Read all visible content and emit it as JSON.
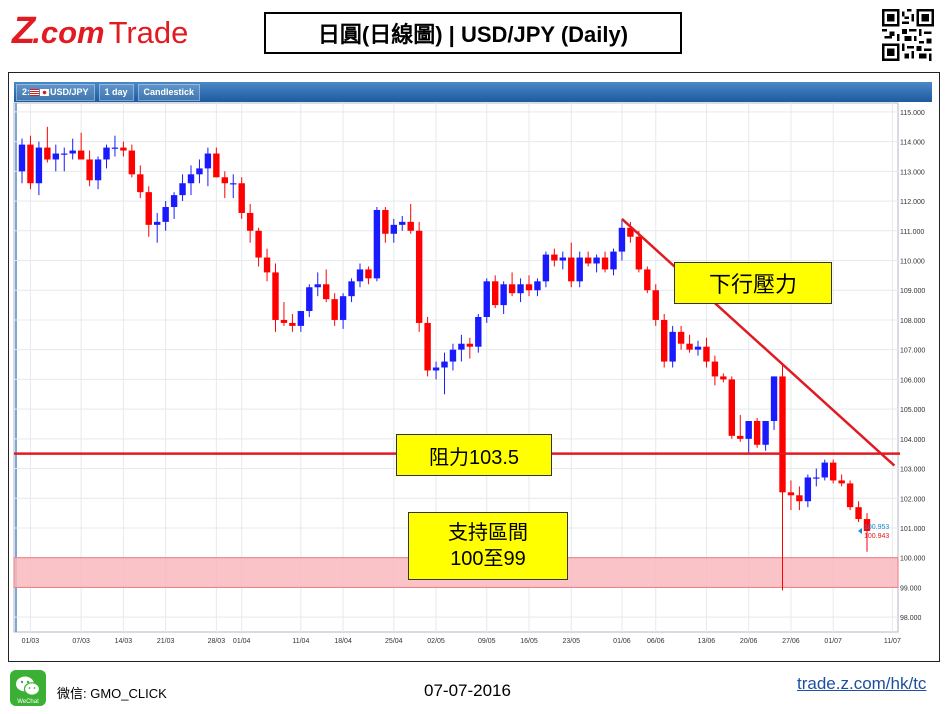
{
  "header": {
    "logo_z": "Z",
    "logo_com": ".com",
    "logo_trade": "Trade",
    "title": "日圓(日線圖) | USD/JPY  (Daily)"
  },
  "toolbar": {
    "index": "2:",
    "symbol": "USD/JPY",
    "period": "1 day",
    "chart_type": "Candlestick"
  },
  "annotations": {
    "downtrend_label": "下行壓力",
    "resistance_label": "阻力103.5",
    "support_line1": "支持區間",
    "support_line2": "100至99"
  },
  "price_tags": {
    "ask": "100.953",
    "bid": "100.943"
  },
  "colors": {
    "up": "#1a1aff",
    "down": "#ff0000",
    "trendline": "#e21a22",
    "support_zone": "#f9b9bd",
    "label_bg": "#ffff00",
    "accent": "#e21a22"
  },
  "footer": {
    "wechat_icon_text": "WeChat",
    "wechat_label": "微信: GMO_CLICK",
    "date": "07-07-2016",
    "url": "trade.z.com/hk/tc"
  },
  "chart_data": {
    "type": "candlestick",
    "title": "",
    "ylim": [
      97.5,
      115.3
    ],
    "yticks": [
      "115.000",
      "114.000",
      "113.000",
      "112.000",
      "111.000",
      "110.000",
      "109.000",
      "108.000",
      "107.000",
      "106.000",
      "105.000",
      "104.000",
      "103.000",
      "102.000",
      "101.000",
      "100.000",
      "99.000",
      "98.000"
    ],
    "xticks": [
      "01/03",
      "07/03",
      "14/03",
      "21/03",
      "28/03",
      "01/04",
      "11/04",
      "18/04",
      "25/04",
      "02/05",
      "09/05",
      "16/05",
      "23/05",
      "01/06",
      "06/06",
      "13/06",
      "20/06",
      "27/06",
      "01/07",
      "11/07"
    ],
    "grid": true,
    "resistance_level": 103.5,
    "support_zone": [
      99.0,
      100.0
    ],
    "trendline": {
      "from": {
        "date": "01/06",
        "value": 111.4
      },
      "to": {
        "date": "11/07",
        "value": 103.1
      }
    },
    "candles": [
      {
        "o": 113.0,
        "h": 114.1,
        "l": 112.6,
        "c": 113.9
      },
      {
        "o": 113.9,
        "h": 114.2,
        "l": 112.4,
        "c": 112.6
      },
      {
        "o": 112.6,
        "h": 114.0,
        "l": 112.2,
        "c": 113.8
      },
      {
        "o": 113.8,
        "h": 114.5,
        "l": 113.3,
        "c": 113.4
      },
      {
        "o": 113.4,
        "h": 113.9,
        "l": 113.0,
        "c": 113.6
      },
      {
        "o": 113.6,
        "h": 113.8,
        "l": 113.0,
        "c": 113.6
      },
      {
        "o": 113.6,
        "h": 114.1,
        "l": 113.4,
        "c": 113.7
      },
      {
        "o": 113.7,
        "h": 114.3,
        "l": 113.5,
        "c": 113.4
      },
      {
        "o": 113.4,
        "h": 113.7,
        "l": 112.5,
        "c": 112.7
      },
      {
        "o": 112.7,
        "h": 113.5,
        "l": 112.4,
        "c": 113.4
      },
      {
        "o": 113.4,
        "h": 113.9,
        "l": 113.1,
        "c": 113.8
      },
      {
        "o": 113.8,
        "h": 114.2,
        "l": 113.5,
        "c": 113.8
      },
      {
        "o": 113.8,
        "h": 114.0,
        "l": 113.5,
        "c": 113.7
      },
      {
        "o": 113.7,
        "h": 113.9,
        "l": 112.8,
        "c": 112.9
      },
      {
        "o": 112.9,
        "h": 113.2,
        "l": 112.1,
        "c": 112.3
      },
      {
        "o": 112.3,
        "h": 112.5,
        "l": 110.8,
        "c": 111.2
      },
      {
        "o": 111.2,
        "h": 111.6,
        "l": 110.6,
        "c": 111.3
      },
      {
        "o": 111.3,
        "h": 112.0,
        "l": 111.0,
        "c": 111.8
      },
      {
        "o": 111.8,
        "h": 112.3,
        "l": 111.4,
        "c": 112.2
      },
      {
        "o": 112.2,
        "h": 112.9,
        "l": 112.0,
        "c": 112.6
      },
      {
        "o": 112.6,
        "h": 113.2,
        "l": 112.2,
        "c": 112.9
      },
      {
        "o": 112.9,
        "h": 113.4,
        "l": 112.6,
        "c": 113.1
      },
      {
        "o": 113.1,
        "h": 113.8,
        "l": 112.5,
        "c": 113.6
      },
      {
        "o": 113.6,
        "h": 113.8,
        "l": 112.8,
        "c": 112.8
      },
      {
        "o": 112.8,
        "h": 113.0,
        "l": 112.1,
        "c": 112.6
      },
      {
        "o": 112.6,
        "h": 112.9,
        "l": 112.1,
        "c": 112.6
      },
      {
        "o": 112.6,
        "h": 112.8,
        "l": 111.4,
        "c": 111.6
      },
      {
        "o": 111.6,
        "h": 111.9,
        "l": 110.6,
        "c": 111.0
      },
      {
        "o": 111.0,
        "h": 111.1,
        "l": 109.8,
        "c": 110.1
      },
      {
        "o": 110.1,
        "h": 110.4,
        "l": 109.3,
        "c": 109.6
      },
      {
        "o": 109.6,
        "h": 109.9,
        "l": 107.6,
        "c": 108.0
      },
      {
        "o": 108.0,
        "h": 108.6,
        "l": 107.8,
        "c": 107.9
      },
      {
        "o": 107.9,
        "h": 108.2,
        "l": 107.6,
        "c": 107.8
      },
      {
        "o": 107.8,
        "h": 108.3,
        "l": 107.6,
        "c": 108.3
      },
      {
        "o": 108.3,
        "h": 109.2,
        "l": 108.1,
        "c": 109.1
      },
      {
        "o": 109.1,
        "h": 109.6,
        "l": 108.8,
        "c": 109.2
      },
      {
        "o": 109.2,
        "h": 109.7,
        "l": 108.6,
        "c": 108.7
      },
      {
        "o": 108.7,
        "h": 108.9,
        "l": 107.8,
        "c": 108.0
      },
      {
        "o": 108.0,
        "h": 108.9,
        "l": 107.7,
        "c": 108.8
      },
      {
        "o": 108.8,
        "h": 109.4,
        "l": 108.6,
        "c": 109.3
      },
      {
        "o": 109.3,
        "h": 109.9,
        "l": 109.1,
        "c": 109.7
      },
      {
        "o": 109.7,
        "h": 109.8,
        "l": 109.2,
        "c": 109.4
      },
      {
        "o": 109.4,
        "h": 111.8,
        "l": 109.3,
        "c": 111.7
      },
      {
        "o": 111.7,
        "h": 111.8,
        "l": 110.6,
        "c": 110.9
      },
      {
        "o": 110.9,
        "h": 111.4,
        "l": 110.6,
        "c": 111.2
      },
      {
        "o": 111.2,
        "h": 111.5,
        "l": 111.0,
        "c": 111.3
      },
      {
        "o": 111.3,
        "h": 111.9,
        "l": 110.9,
        "c": 111.0
      },
      {
        "o": 111.0,
        "h": 111.3,
        "l": 107.6,
        "c": 107.9
      },
      {
        "o": 107.9,
        "h": 108.1,
        "l": 106.1,
        "c": 106.3
      },
      {
        "o": 106.3,
        "h": 106.6,
        "l": 106.0,
        "c": 106.4
      },
      {
        "o": 106.4,
        "h": 106.9,
        "l": 105.5,
        "c": 106.6
      },
      {
        "o": 106.6,
        "h": 107.2,
        "l": 106.3,
        "c": 107.0
      },
      {
        "o": 107.0,
        "h": 107.5,
        "l": 106.6,
        "c": 107.2
      },
      {
        "o": 107.2,
        "h": 107.4,
        "l": 106.7,
        "c": 107.1
      },
      {
        "o": 107.1,
        "h": 108.2,
        "l": 106.9,
        "c": 108.1
      },
      {
        "o": 108.1,
        "h": 109.4,
        "l": 107.9,
        "c": 109.3
      },
      {
        "o": 109.3,
        "h": 109.5,
        "l": 108.4,
        "c": 108.5
      },
      {
        "o": 108.5,
        "h": 109.3,
        "l": 108.2,
        "c": 109.2
      },
      {
        "o": 109.2,
        "h": 109.6,
        "l": 108.8,
        "c": 108.9
      },
      {
        "o": 108.9,
        "h": 109.4,
        "l": 108.6,
        "c": 109.2
      },
      {
        "o": 109.2,
        "h": 109.5,
        "l": 108.8,
        "c": 109.0
      },
      {
        "o": 109.0,
        "h": 109.4,
        "l": 108.8,
        "c": 109.3
      },
      {
        "o": 109.3,
        "h": 110.3,
        "l": 109.1,
        "c": 110.2
      },
      {
        "o": 110.2,
        "h": 110.4,
        "l": 109.8,
        "c": 110.0
      },
      {
        "o": 110.0,
        "h": 110.3,
        "l": 109.7,
        "c": 110.1
      },
      {
        "o": 110.1,
        "h": 110.6,
        "l": 109.1,
        "c": 109.3
      },
      {
        "o": 109.3,
        "h": 110.3,
        "l": 109.1,
        "c": 110.1
      },
      {
        "o": 110.1,
        "h": 110.3,
        "l": 109.8,
        "c": 109.9
      },
      {
        "o": 109.9,
        "h": 110.2,
        "l": 109.6,
        "c": 110.1
      },
      {
        "o": 110.1,
        "h": 110.3,
        "l": 109.6,
        "c": 109.7
      },
      {
        "o": 109.7,
        "h": 110.4,
        "l": 109.5,
        "c": 110.3
      },
      {
        "o": 110.3,
        "h": 111.4,
        "l": 110.0,
        "c": 111.1
      },
      {
        "o": 111.1,
        "h": 111.3,
        "l": 110.6,
        "c": 110.8
      },
      {
        "o": 110.8,
        "h": 111.0,
        "l": 109.6,
        "c": 109.7
      },
      {
        "o": 109.7,
        "h": 109.8,
        "l": 108.9,
        "c": 109.0
      },
      {
        "o": 109.0,
        "h": 109.2,
        "l": 107.8,
        "c": 108.0
      },
      {
        "o": 108.0,
        "h": 108.2,
        "l": 106.4,
        "c": 106.6
      },
      {
        "o": 106.6,
        "h": 107.8,
        "l": 106.4,
        "c": 107.6
      },
      {
        "o": 107.6,
        "h": 107.8,
        "l": 107.0,
        "c": 107.2
      },
      {
        "o": 107.2,
        "h": 107.5,
        "l": 106.9,
        "c": 107.0
      },
      {
        "o": 107.0,
        "h": 107.3,
        "l": 106.8,
        "c": 107.1
      },
      {
        "o": 107.1,
        "h": 107.4,
        "l": 106.4,
        "c": 106.6
      },
      {
        "o": 106.6,
        "h": 106.8,
        "l": 105.8,
        "c": 106.1
      },
      {
        "o": 106.1,
        "h": 106.2,
        "l": 105.9,
        "c": 106.0
      },
      {
        "o": 106.0,
        "h": 106.1,
        "l": 104.0,
        "c": 104.1
      },
      {
        "o": 104.1,
        "h": 104.8,
        "l": 103.9,
        "c": 104.0
      },
      {
        "o": 104.0,
        "h": 104.5,
        "l": 103.5,
        "c": 104.6
      },
      {
        "o": 104.6,
        "h": 104.7,
        "l": 103.7,
        "c": 103.8
      },
      {
        "o": 103.8,
        "h": 104.6,
        "l": 103.6,
        "c": 104.6
      },
      {
        "o": 104.6,
        "h": 106.1,
        "l": 104.3,
        "c": 106.1
      },
      {
        "o": 106.1,
        "h": 106.5,
        "l": 98.9,
        "c": 102.2
      },
      {
        "o": 102.2,
        "h": 102.6,
        "l": 101.6,
        "c": 102.1
      },
      {
        "o": 102.1,
        "h": 102.4,
        "l": 101.6,
        "c": 101.9
      },
      {
        "o": 101.9,
        "h": 102.8,
        "l": 101.7,
        "c": 102.7
      },
      {
        "o": 102.7,
        "h": 103.0,
        "l": 102.4,
        "c": 102.7
      },
      {
        "o": 102.7,
        "h": 103.3,
        "l": 102.6,
        "c": 103.2
      },
      {
        "o": 103.2,
        "h": 103.3,
        "l": 102.5,
        "c": 102.6
      },
      {
        "o": 102.6,
        "h": 102.8,
        "l": 102.4,
        "c": 102.5
      },
      {
        "o": 102.5,
        "h": 102.6,
        "l": 101.6,
        "c": 101.7
      },
      {
        "o": 101.7,
        "h": 101.9,
        "l": 101.2,
        "c": 101.3
      },
      {
        "o": 101.3,
        "h": 101.5,
        "l": 100.2,
        "c": 100.9
      }
    ]
  }
}
